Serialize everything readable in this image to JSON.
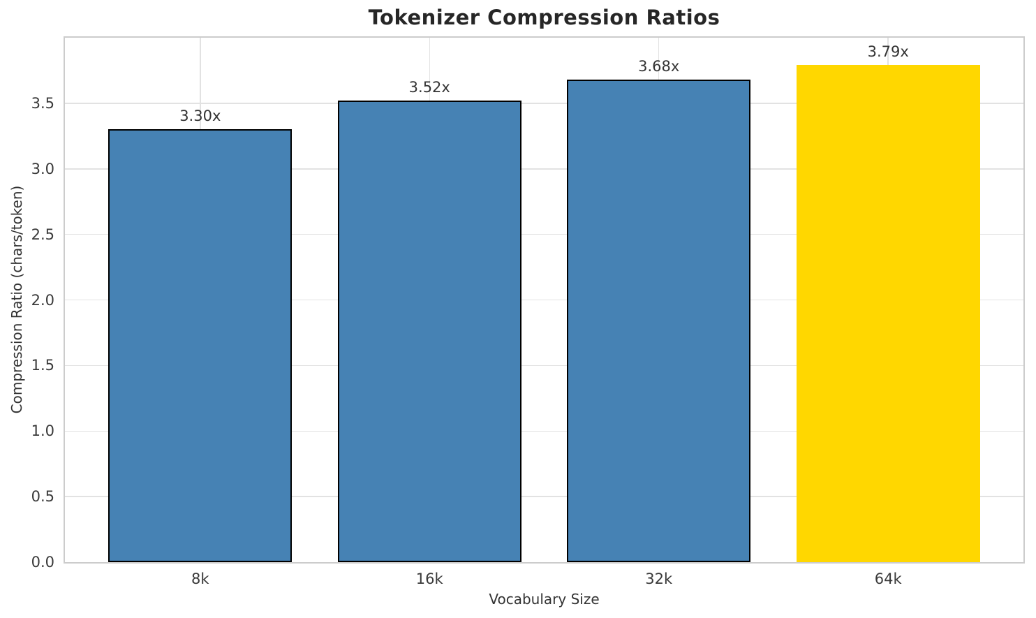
{
  "chart_data": {
    "type": "bar",
    "title": "Tokenizer Compression Ratios",
    "xlabel": "Vocabulary Size",
    "ylabel": "Compression Ratio (chars/token)",
    "categories": [
      "8k",
      "16k",
      "32k",
      "64k"
    ],
    "values": [
      3.3,
      3.52,
      3.68,
      3.79
    ],
    "bar_labels": [
      "3.30x",
      "3.52x",
      "3.68x",
      "3.79x"
    ],
    "bar_colors": [
      "#4682B4",
      "#4682B4",
      "#4682B4",
      "#FFD700"
    ],
    "bar_edge_colors": [
      "#000000",
      "#000000",
      "#000000",
      "none"
    ],
    "ylim": [
      0,
      4.0
    ],
    "xlim": [
      -0.59,
      3.59
    ],
    "bar_half_width": 0.4,
    "yticks": [
      0.0,
      0.5,
      1.0,
      1.5,
      2.0,
      2.5,
      3.0,
      3.5
    ],
    "ytick_labels": [
      "0.0",
      "0.5",
      "1.0",
      "1.5",
      "2.0",
      "2.5",
      "3.0",
      "3.5"
    ],
    "grid": true,
    "grid_color": "#e2e2e2",
    "spine_color": "#cccccc",
    "legend": "none",
    "highlight_category": "64k",
    "highlight_color": "#FFD700",
    "series_color": "#4682B4"
  }
}
